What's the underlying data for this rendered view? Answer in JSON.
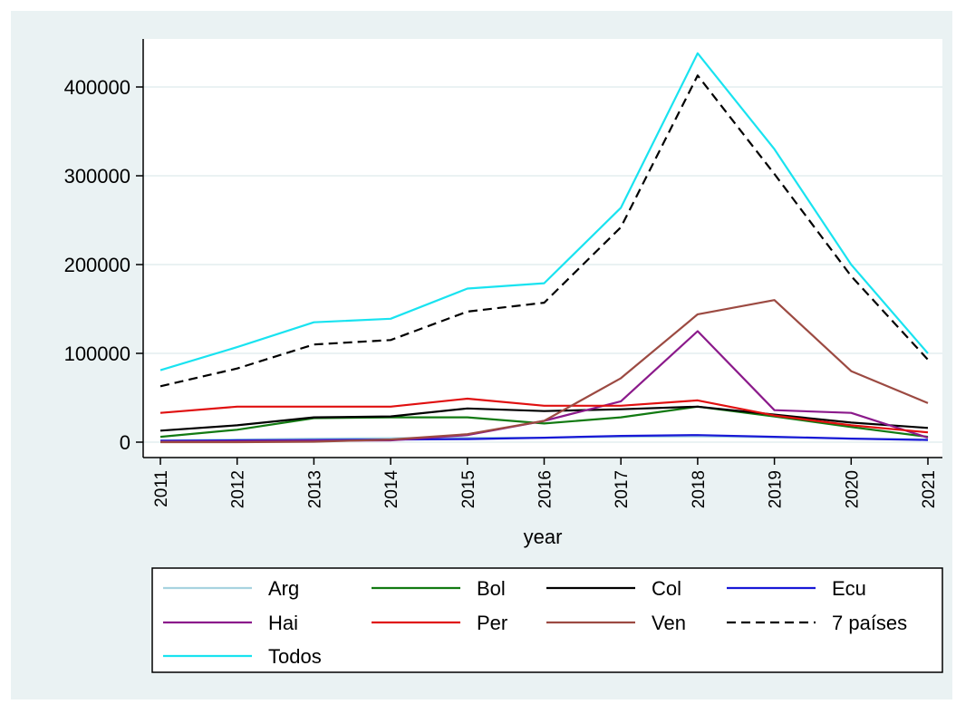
{
  "chart_data": {
    "type": "line",
    "title": "",
    "xlabel": "year",
    "ylabel": "",
    "x": [
      2011,
      2012,
      2013,
      2014,
      2015,
      2016,
      2017,
      2018,
      2019,
      2020,
      2021
    ],
    "xlim": [
      2011,
      2021
    ],
    "ylim": [
      0,
      450000
    ],
    "yticks": [
      0,
      100000,
      200000,
      300000,
      400000
    ],
    "grid": true,
    "legend": "bottom",
    "colors": {
      "plot_background": "#ffffff",
      "outer_background": "#eaf2f3",
      "grid": "#eaf2f3"
    },
    "series": [
      {
        "name": "Arg",
        "color": "#a7d3e0",
        "dash": "",
        "values": [
          2000,
          3000,
          4000,
          4500,
          5000,
          5000,
          6000,
          6500,
          5500,
          4000,
          3000
        ]
      },
      {
        "name": "Bol",
        "color": "#127a12",
        "dash": "",
        "values": [
          6000,
          14000,
          27000,
          28000,
          28000,
          21000,
          28000,
          40000,
          29000,
          17000,
          6000
        ]
      },
      {
        "name": "Col",
        "color": "#000000",
        "dash": "",
        "values": [
          13000,
          19000,
          28000,
          29000,
          38000,
          35000,
          37000,
          40000,
          31000,
          22000,
          16000
        ]
      },
      {
        "name": "Ecu",
        "color": "#1818d6",
        "dash": "",
        "values": [
          1500,
          2000,
          2500,
          3000,
          3500,
          5000,
          7000,
          8000,
          6000,
          4000,
          2500
        ]
      },
      {
        "name": "Hai",
        "color": "#8b1a8b",
        "dash": "",
        "values": [
          500,
          1000,
          1500,
          2000,
          8000,
          24000,
          46000,
          125000,
          36000,
          33000,
          5000
        ]
      },
      {
        "name": "Per",
        "color": "#e01010",
        "dash": "",
        "values": [
          33000,
          40000,
          40000,
          40000,
          49000,
          41000,
          41000,
          47000,
          30000,
          19000,
          11000
        ]
      },
      {
        "name": "Ven",
        "color": "#9c4a42",
        "dash": "",
        "values": [
          0,
          0,
          500,
          3000,
          9000,
          24000,
          72000,
          144000,
          160000,
          80000,
          44000
        ]
      },
      {
        "name": "7 países",
        "color": "#000000",
        "dash": "10,6",
        "values": [
          63000,
          83000,
          110000,
          115000,
          147000,
          157000,
          242000,
          413000,
          302000,
          187000,
          93000
        ]
      },
      {
        "name": "Todos",
        "color": "#19e3f0",
        "dash": "",
        "values": [
          81000,
          107000,
          135000,
          139000,
          173000,
          179000,
          264000,
          438000,
          330000,
          200000,
          100000
        ]
      }
    ]
  }
}
